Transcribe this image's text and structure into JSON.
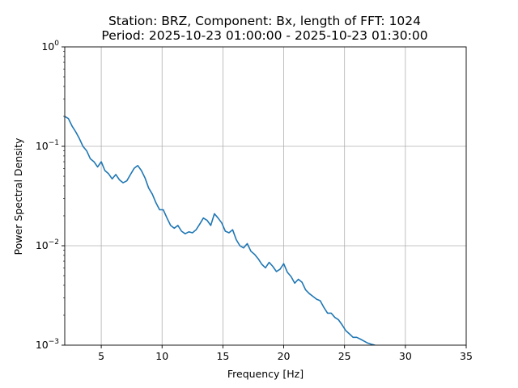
{
  "chart_data": {
    "type": "line",
    "title": "Station: BRZ, Component: Bx, length of FFT: 1024",
    "subtitle": "Period: 2025-10-23 01:00:00 - 2025-10-23 01:30:00",
    "xlabel": "Frequency [Hz]",
    "ylabel": "Power Spectral Density",
    "xlim": [
      2,
      35
    ],
    "ylim": [
      0.001,
      1
    ],
    "yscale": "log",
    "grid": true,
    "line_color": "#1f77b4",
    "x_ticks": [
      {
        "value": 5,
        "label": "5"
      },
      {
        "value": 10,
        "label": "10"
      },
      {
        "value": 15,
        "label": "15"
      },
      {
        "value": 20,
        "label": "20"
      },
      {
        "value": 25,
        "label": "25"
      },
      {
        "value": 30,
        "label": "30"
      },
      {
        "value": 35,
        "label": "35"
      }
    ],
    "y_ticks": [
      {
        "value": 0.001,
        "base": "10",
        "exp": "−3"
      },
      {
        "value": 0.01,
        "base": "10",
        "exp": "−2"
      },
      {
        "value": 0.1,
        "base": "10",
        "exp": "−1"
      },
      {
        "value": 1,
        "base": "10",
        "exp": "0"
      }
    ],
    "series": [
      {
        "x": [
          2.0,
          2.3,
          2.6,
          2.9,
          3.2,
          3.5,
          3.8,
          4.1,
          4.4,
          4.7,
          5.0,
          5.3,
          5.6,
          5.9,
          6.2,
          6.5,
          6.8,
          7.1,
          7.4,
          7.7,
          8.0,
          8.3,
          8.6,
          8.9,
          9.2,
          9.5,
          9.8,
          10.1,
          10.4,
          10.7,
          11.0,
          11.3,
          11.6,
          11.9,
          12.2,
          12.5,
          12.8,
          13.1,
          13.4,
          13.7,
          14.0,
          14.3,
          14.6,
          14.9,
          15.2,
          15.5,
          15.8,
          16.1,
          16.4,
          16.7,
          17.0,
          17.3,
          17.6,
          17.9,
          18.2,
          18.5,
          18.8,
          19.1,
          19.4,
          19.7,
          20.0,
          20.3,
          20.6,
          20.9,
          21.2,
          21.5,
          21.8,
          22.1,
          22.4,
          22.7,
          23.0,
          23.3,
          23.6,
          23.9,
          24.2,
          24.5,
          24.8,
          25.1,
          25.4,
          25.7,
          26.0,
          26.3,
          26.6,
          26.9,
          27.2,
          27.5
        ],
        "values": [
          0.2,
          0.19,
          0.16,
          0.14,
          0.12,
          0.1,
          0.09,
          0.075,
          0.07,
          0.062,
          0.07,
          0.057,
          0.053,
          0.047,
          0.052,
          0.046,
          0.043,
          0.045,
          0.052,
          0.06,
          0.064,
          0.057,
          0.048,
          0.038,
          0.033,
          0.027,
          0.023,
          0.023,
          0.019,
          0.016,
          0.015,
          0.016,
          0.014,
          0.0132,
          0.0138,
          0.0135,
          0.0145,
          0.0165,
          0.019,
          0.018,
          0.016,
          0.021,
          0.019,
          0.017,
          0.014,
          0.0135,
          0.0145,
          0.0115,
          0.01,
          0.0095,
          0.0105,
          0.0088,
          0.0082,
          0.0074,
          0.0065,
          0.006,
          0.0068,
          0.0062,
          0.0055,
          0.0058,
          0.0066,
          0.0054,
          0.0049,
          0.0042,
          0.0046,
          0.0043,
          0.0036,
          0.0033,
          0.0031,
          0.0029,
          0.0028,
          0.0024,
          0.0021,
          0.0021,
          0.0019,
          0.0018,
          0.0016,
          0.0014,
          0.0013,
          0.0012,
          0.0012,
          0.00115,
          0.0011,
          0.00105,
          0.00102,
          0.001
        ]
      }
    ]
  }
}
